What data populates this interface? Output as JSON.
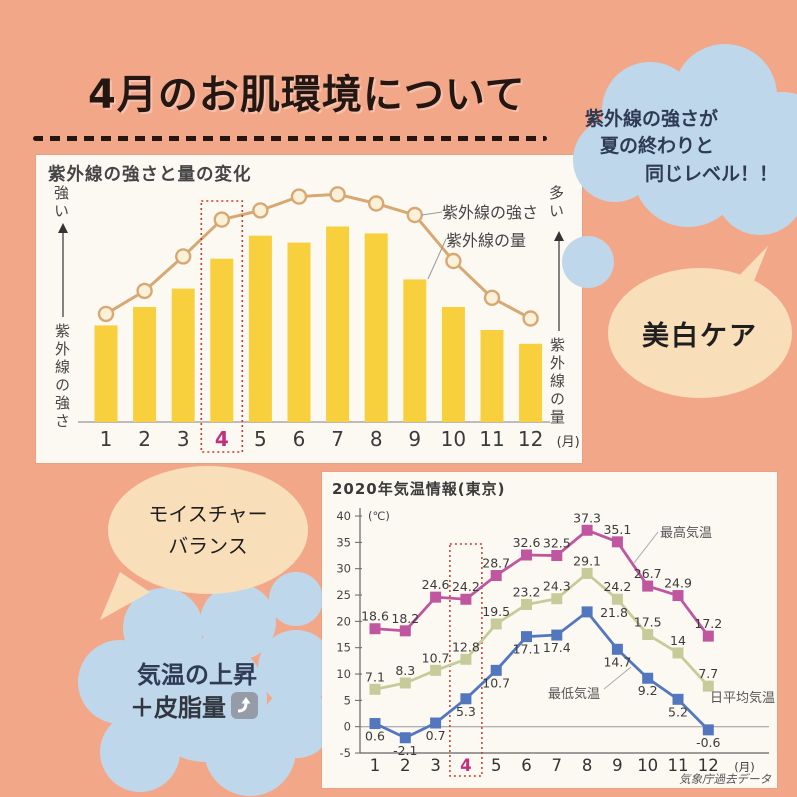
{
  "page": {
    "title": "4月のお肌環境について",
    "background_color": "#F3A789"
  },
  "bubbles": {
    "uv_level": {
      "lines": [
        "紫外線の強さが",
        "夏の終わりと",
        "同じレベル！！"
      ],
      "color": "#BFD7EB"
    },
    "whitening_care": {
      "text": "美白ケア",
      "color": "#F9DEBA"
    },
    "moisture_balance": {
      "lines": [
        "モイスチャー",
        "バランス"
      ],
      "color": "#F9DEBA"
    },
    "sebum": {
      "line1": "気温の上昇",
      "line2_prefix": "＋皮脂量",
      "line2_icon": "up-right-arrow-emoji",
      "color": "#BFD7EB"
    }
  },
  "chart_data": [
    {
      "type": "bar+line",
      "title": "紫外線の強さと量の変化",
      "categories": [
        "1",
        "2",
        "3",
        "4",
        "5",
        "6",
        "7",
        "8",
        "9",
        "10",
        "11",
        "12"
      ],
      "x_unit": "(月)",
      "highlighted_category": "4",
      "highlight_color": "#C1307E",
      "highlight_box_color": "#C43B2E",
      "grid": false,
      "bar_series": {
        "name": "紫外線の量",
        "color": "#F8CF3D",
        "values_pct": [
          42,
          50,
          58,
          71,
          81,
          78,
          85,
          82,
          62,
          50,
          40,
          34
        ]
      },
      "line_series": {
        "name": "紫外線の強さ",
        "color": "#D8A873",
        "marker_fill": "#FBF0D8",
        "values_pct": [
          47,
          57,
          72,
          88,
          92,
          98,
          99,
          95,
          90,
          70,
          54,
          45
        ]
      },
      "left_axis": {
        "top_label": "強い",
        "axis_label": "紫外線の強さ"
      },
      "right_axis": {
        "top_label": "多い",
        "axis_label": "紫外線の量"
      }
    },
    {
      "type": "line",
      "title": "2020年気温情報(東京)",
      "y_unit": "(℃)",
      "x_unit": "(月)",
      "categories": [
        "1",
        "2",
        "3",
        "4",
        "5",
        "6",
        "7",
        "8",
        "9",
        "10",
        "11",
        "12"
      ],
      "highlighted_category": "4",
      "highlight_color": "#C1307E",
      "highlight_box_color": "#C43B2E",
      "ylim": [
        -5,
        40
      ],
      "yticks": [
        40,
        35,
        30,
        25,
        20,
        15,
        10,
        5,
        0,
        -5
      ],
      "grid": false,
      "legend_position": "inline-annotations",
      "series": [
        {
          "name": "最高気温",
          "color": "#C0569F",
          "values": [
            18.6,
            18.2,
            24.6,
            24.2,
            28.7,
            32.6,
            32.5,
            37.3,
            35.1,
            26.7,
            24.9,
            17.2
          ]
        },
        {
          "name": "日平均気温",
          "color": "#C6CC99",
          "values": [
            7.1,
            8.3,
            10.7,
            12.8,
            19.5,
            23.2,
            24.3,
            29.1,
            24.2,
            17.5,
            14,
            7.7
          ]
        },
        {
          "name": "最低気温",
          "color": "#5377BE",
          "values": [
            0.6,
            -2.1,
            0.7,
            5.3,
            10.7,
            17.1,
            17.4,
            21.8,
            14.7,
            9.2,
            5.2,
            -0.6
          ]
        }
      ],
      "caption": "気象庁過去データ"
    }
  ]
}
